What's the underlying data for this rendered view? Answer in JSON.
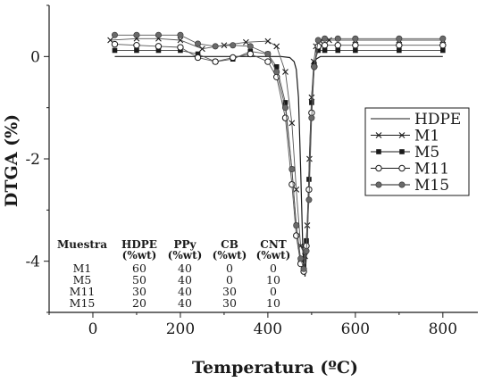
{
  "chart_data": {
    "type": "line",
    "xlabel": "Temperatura (ºC)",
    "ylabel": "DTGA (%)",
    "xlim": [
      -100,
      880
    ],
    "ylim": [
      -5,
      1
    ],
    "x_ticks": [
      "0",
      "200",
      "400",
      "600",
      "800"
    ],
    "x_tick_values": [
      0,
      200,
      400,
      600,
      800
    ],
    "y_ticks": [
      "0",
      "-2",
      "-4"
    ],
    "y_tick_values": [
      0,
      -2,
      -4
    ],
    "grid": false,
    "legend_position": "right",
    "series": [
      {
        "name": "HDPE",
        "marker": "none",
        "color": "#1a1a1a",
        "x": [
          50,
          150,
          250,
          350,
          400,
          430,
          450,
          460,
          465,
          470,
          475,
          480,
          485,
          490,
          495,
          500,
          505,
          510,
          520,
          540,
          600,
          700,
          800
        ],
        "y": [
          0,
          0,
          0,
          0,
          0,
          0,
          -0.02,
          -0.1,
          -0.25,
          -0.8,
          -2.2,
          -3.8,
          -4.3,
          -3.6,
          -2.0,
          -0.8,
          -0.3,
          -0.05,
          0,
          0,
          0,
          0,
          0
        ]
      },
      {
        "name": "M1",
        "marker": "x",
        "color": "#1a1a1a",
        "x": [
          40,
          100,
          150,
          200,
          250,
          300,
          350,
          400,
          420,
          440,
          455,
          465,
          475,
          485,
          490,
          495,
          500,
          505,
          510,
          520,
          540,
          600,
          700,
          800
        ],
        "y": [
          0.32,
          0.35,
          0.35,
          0.32,
          0.15,
          0.22,
          0.28,
          0.3,
          0.2,
          -0.3,
          -1.3,
          -2.6,
          -3.7,
          -3.9,
          -3.3,
          -2.0,
          -0.8,
          -0.1,
          0.2,
          0.3,
          0.32,
          0.32,
          0.32,
          0.32
        ]
      },
      {
        "name": "M5",
        "marker": "filled-square",
        "color": "#1a1a1a",
        "x": [
          50,
          100,
          150,
          200,
          240,
          280,
          320,
          360,
          400,
          420,
          440,
          455,
          465,
          475,
          482,
          488,
          494,
          500,
          506,
          515,
          530,
          560,
          600,
          700,
          800
        ],
        "y": [
          0.12,
          0.12,
          0.12,
          0.12,
          0.05,
          -0.1,
          -0.05,
          0.1,
          0.05,
          -0.2,
          -0.9,
          -2.2,
          -3.3,
          -4.0,
          -4.1,
          -3.6,
          -2.4,
          -0.9,
          -0.15,
          0.12,
          0.12,
          0.12,
          0.12,
          0.12,
          0.12
        ]
      },
      {
        "name": "M11",
        "marker": "open-circle",
        "color": "#1a1a1a",
        "x": [
          50,
          100,
          150,
          200,
          240,
          280,
          320,
          360,
          400,
          420,
          440,
          455,
          465,
          475,
          482,
          488,
          494,
          500,
          506,
          515,
          530,
          560,
          600,
          700,
          800
        ],
        "y": [
          0.24,
          0.22,
          0.2,
          0.18,
          -0.02,
          -0.1,
          -0.02,
          0.05,
          -0.1,
          -0.4,
          -1.2,
          -2.5,
          -3.5,
          -4.05,
          -4.2,
          -3.7,
          -2.6,
          -1.1,
          -0.2,
          0.2,
          0.22,
          0.22,
          0.22,
          0.22,
          0.22
        ]
      },
      {
        "name": "M15",
        "marker": "filled-circle",
        "color": "#1a1a1a",
        "x": [
          50,
          100,
          150,
          200,
          240,
          280,
          320,
          360,
          400,
          420,
          440,
          455,
          465,
          475,
          482,
          488,
          494,
          500,
          506,
          515,
          530,
          560,
          600,
          700,
          800
        ],
        "y": [
          0.42,
          0.42,
          0.42,
          0.42,
          0.25,
          0.2,
          0.22,
          0.2,
          0.05,
          -0.3,
          -1.0,
          -2.2,
          -3.3,
          -3.95,
          -4.15,
          -3.8,
          -2.8,
          -1.2,
          -0.2,
          0.32,
          0.35,
          0.35,
          0.35,
          0.35,
          0.35
        ]
      }
    ],
    "table": {
      "headers": [
        [
          "Muestra",
          ""
        ],
        [
          "HDPE",
          "(%wt)"
        ],
        [
          "PPy",
          "(%wt)"
        ],
        [
          "CB",
          "(%wt)"
        ],
        [
          "CNT",
          "(%wt)"
        ]
      ],
      "rows": [
        [
          "M1",
          "60",
          "40",
          "0",
          "0"
        ],
        [
          "M5",
          "50",
          "40",
          "0",
          "10"
        ],
        [
          "M11",
          "30",
          "40",
          "30",
          "0"
        ],
        [
          "M15",
          "20",
          "40",
          "30",
          "10"
        ]
      ]
    }
  }
}
